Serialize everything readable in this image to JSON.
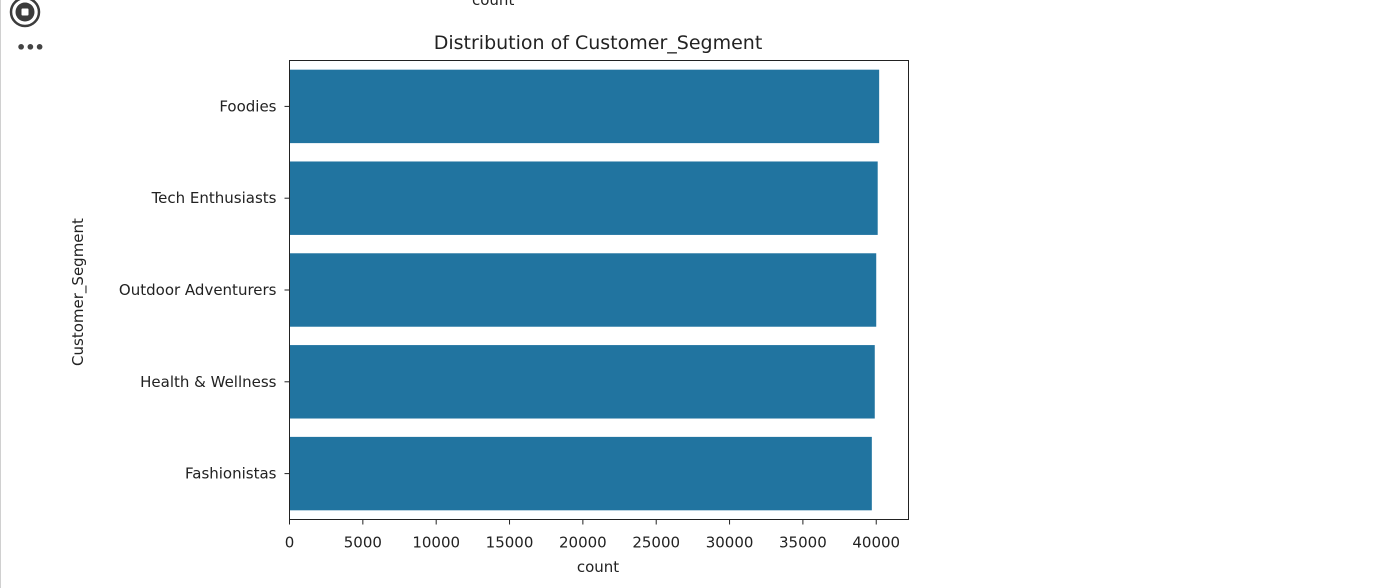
{
  "cell": {
    "run_icon": "stop-circle-icon",
    "more_icon": "ellipsis-icon",
    "more_label": "•••",
    "previous_output_axis_label": "count"
  },
  "chart_data": {
    "type": "bar",
    "orientation": "horizontal",
    "title": "Distribution of Customer_Segment",
    "xlabel": "count",
    "ylabel": "Customer_Segment",
    "categories": [
      "Foodies",
      "Tech Enthusiasts",
      "Outdoor Adventurers",
      "Health & Wellness",
      "Fashionistas"
    ],
    "values": [
      40200,
      40100,
      40000,
      39900,
      39700
    ],
    "xlim": [
      0,
      42200
    ],
    "xticks": [
      0,
      5000,
      10000,
      15000,
      20000,
      25000,
      30000,
      35000,
      40000
    ],
    "grid": false,
    "bar_color": "#2174a0"
  }
}
